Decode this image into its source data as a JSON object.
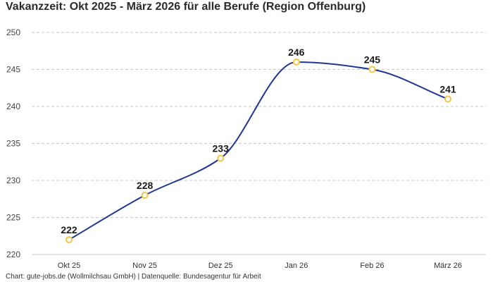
{
  "colors": {
    "line": "#1f3791",
    "marker_fill": "#ffffff",
    "marker_stroke": "#f2c744",
    "grid": "#c8c8c8"
  },
  "chart_data": {
    "type": "line",
    "title": "Vakanzzeit: Okt 2025 - März 2026 für alle Berufe (Region Offenburg)",
    "xlabel": "",
    "ylabel": "",
    "categories": [
      "Okt 25",
      "Nov 25",
      "Dez 25",
      "Jan 26",
      "Feb 26",
      "März 26"
    ],
    "series": [
      {
        "values": [
          222,
          228,
          233,
          246,
          245,
          241
        ]
      }
    ],
    "data_labels": [
      "222",
      "228",
      "233",
      "246",
      "245",
      "241"
    ],
    "yticks": [
      "220",
      "225",
      "230",
      "235",
      "240",
      "245",
      "250"
    ],
    "ylim": [
      220,
      250
    ],
    "grid": "horizontal dashed",
    "legend": "none",
    "line_style": "smooth",
    "source": "Chart: gute-jobs.de (Wollmilchsau GmbH) | Datenquelle: Bundesagentur für Arbeit"
  }
}
